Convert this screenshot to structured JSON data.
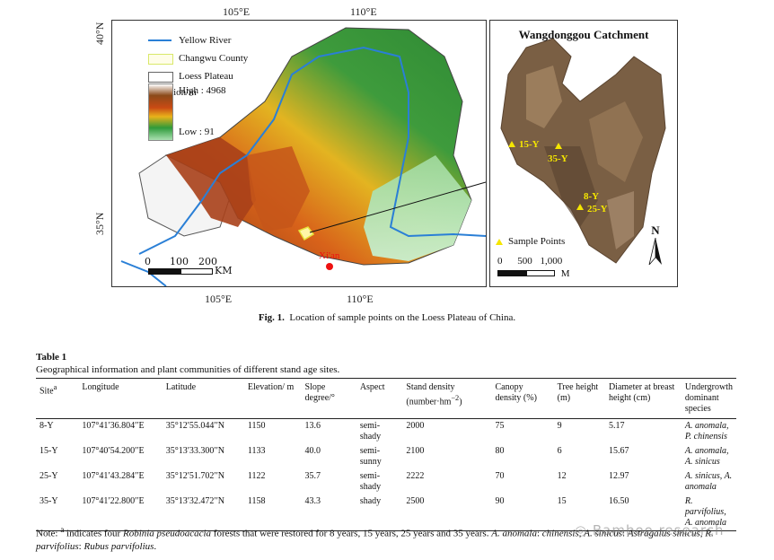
{
  "figure": {
    "ticks": {
      "top": [
        "105°E",
        "110°E"
      ],
      "bottom": [
        "105°E",
        "110°E"
      ],
      "left": [
        "40°N",
        "35°N"
      ]
    },
    "legend": {
      "river": "Yellow River",
      "county": "Changwu County",
      "loess": "Loess Plateau",
      "elevation_title": "Elevation/m",
      "high": "High : 4968",
      "low": "Low : 91"
    },
    "scale": {
      "labels": [
        "0",
        "100",
        "200"
      ],
      "unit": "KM"
    },
    "city": "Xi'an",
    "inset": {
      "title": "Wangdonggou Catchment",
      "sites": [
        "15-Y",
        "35-Y",
        "8-Y",
        "25-Y"
      ],
      "sample_legend": "Sample Points",
      "north": "N",
      "scale_labels": [
        "0",
        "500",
        "1,000"
      ],
      "scale_unit": "M"
    },
    "caption_label": "Fig. 1.",
    "caption_text": "Location of sample points on the Loess Plateau of China."
  },
  "table": {
    "title": "Table 1",
    "caption": "Geographical information and plant communities of different stand age sites.",
    "headers": {
      "site": "Site",
      "site_sup": "a",
      "longitude": "Longitude",
      "latitude": "Latitude",
      "elevation": "Elevation/ m",
      "slope": "Slope degree/°",
      "aspect": "Aspect",
      "density": "Stand density (number·hm",
      "density_sup": "−2",
      "density_end": ")",
      "canopy": "Canopy density (%)",
      "height": "Tree height (m)",
      "diameter": "Diameter at breast height (cm)",
      "species": "Undergrowth dominant species"
    },
    "rows": [
      {
        "site": "8-Y",
        "lon": "107°41′36.804′′E",
        "lat": "35°12′55.044′′N",
        "elev": "1150",
        "slope": "13.6",
        "aspect": "semi-shady",
        "density": "2000",
        "canopy": "75",
        "height": "9",
        "dbh": "5.17",
        "species": "A. anomala, P. chinensis"
      },
      {
        "site": "15-Y",
        "lon": "107°40′54.200′′E",
        "lat": "35°13′33.300′′N",
        "elev": "1133",
        "slope": "40.0",
        "aspect": "semi-sunny",
        "density": "2100",
        "canopy": "80",
        "height": "6",
        "dbh": "15.67",
        "species": "A. anomala, A. sinicus"
      },
      {
        "site": "25-Y",
        "lon": "107°41′43.284′′E",
        "lat": "35°12′51.702′′N",
        "elev": "1122",
        "slope": "35.7",
        "aspect": "semi-shady",
        "density": "2222",
        "canopy": "70",
        "height": "12",
        "dbh": "12.97",
        "species": "A. sinicus, A. anomala"
      },
      {
        "site": "35-Y",
        "lon": "107°41′22.800′′E",
        "lat": "35°13′32.472′′N",
        "elev": "1158",
        "slope": "43.3",
        "aspect": "shady",
        "density": "2500",
        "canopy": "90",
        "height": "15",
        "dbh": "16.50",
        "species": "R. parvifolius, A. anomala"
      }
    ],
    "note": {
      "prefix": "Note: ",
      "sup": "a",
      "p1": " indicates four ",
      "species_name": "Robinia pseudoacacia",
      "p2": " forests that were restored for 8 years, 15 years, 25 years and 35 years. ",
      "a1": "A. anomala",
      "p3": ": ",
      "a2": "chinensis",
      "p4": ", ",
      "a3": "A. sinicus",
      "p5": ": ",
      "a4": "Astragalus sinicus",
      "p6": ", ",
      "a5": "R. parvifolius",
      "p7": ": ",
      "a6": "Rubus parvifolius",
      "p8": "."
    },
    "watermark": "Bamboo research"
  }
}
